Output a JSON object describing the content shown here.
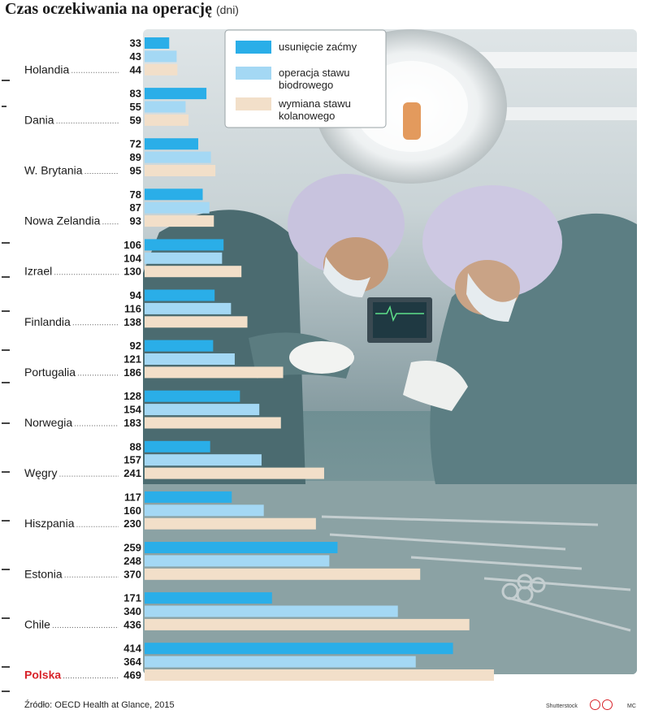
{
  "title": "Czas oczekiwania na operację",
  "title_unit": "(dni)",
  "source": "Źródło: OECD Health at Glance, 2015",
  "photo_credit": "Shutterstock",
  "author": "MC",
  "colors": {
    "bar1": "#2aaee8",
    "bar2": "#a4d8f4",
    "bar3": "#f2dfc9",
    "highlight": "#d8232a",
    "text": "#1a1a1a"
  },
  "chart_data": {
    "type": "bar",
    "orientation": "horizontal",
    "categories": [
      "Holandia",
      "Dania",
      "W. Brytania",
      "Nowa Zelandia",
      "Izrael",
      "Finlandia",
      "Portugalia",
      "Norwegia",
      "Węgry",
      "Hiszpania",
      "Estonia",
      "Chile",
      "Polska"
    ],
    "highlighted_category": "Polska",
    "series": [
      {
        "name": "usunięcie zaćmy",
        "values": [
          33,
          83,
          72,
          78,
          106,
          94,
          92,
          128,
          88,
          117,
          259,
          171,
          414
        ]
      },
      {
        "name": "operacja stawu biodrowego",
        "values": [
          43,
          55,
          89,
          87,
          104,
          116,
          121,
          154,
          157,
          160,
          248,
          340,
          364
        ]
      },
      {
        "name": "wymiana stawu kolanowego",
        "values": [
          44,
          59,
          95,
          93,
          130,
          138,
          186,
          183,
          241,
          230,
          370,
          436,
          469
        ]
      }
    ],
    "legend_position": "top-center",
    "grid": false
  }
}
